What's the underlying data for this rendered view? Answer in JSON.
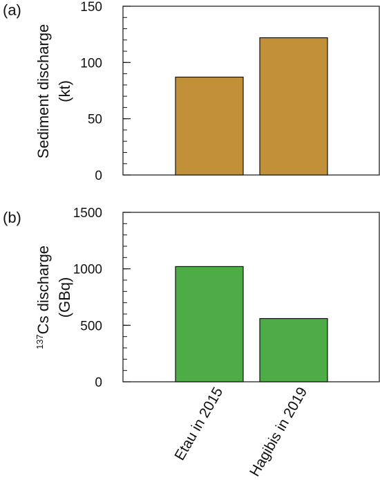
{
  "chart_data": [
    {
      "type": "bar",
      "panel_label": "(a)",
      "categories": [
        "Etau in 2015",
        "Hagibis in 2019"
      ],
      "values": [
        87,
        122
      ],
      "ylabel_line1": "Sediment discharge",
      "ylabel_line2": "(kt)",
      "ylim": [
        0,
        150
      ],
      "yticks": [
        0,
        50,
        100,
        150
      ],
      "minor_tick_step": 10,
      "bar_color": "#c19038",
      "grid": false
    },
    {
      "type": "bar",
      "panel_label": "(b)",
      "categories": [
        "Etau in 2015",
        "Hagibis in 2019"
      ],
      "values": [
        1020,
        560
      ],
      "ylabel_sup": "137",
      "ylabel_line1": "Cs  discharge",
      "ylabel_line2": "(GBq)",
      "ylim": [
        0,
        1500
      ],
      "yticks": [
        0,
        500,
        1000,
        1500
      ],
      "minor_tick_step": 100,
      "bar_color": "#4dac45",
      "grid": false
    }
  ],
  "colors": {
    "axis": "#111111",
    "bar_edge": "#111111"
  }
}
